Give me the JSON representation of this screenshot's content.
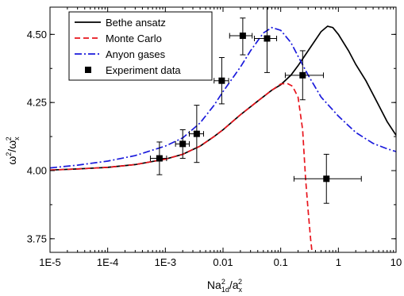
{
  "chart_data": {
    "type": "line",
    "title": "",
    "xscale": "log",
    "xlim": [
      1e-05,
      10
    ],
    "ylim": [
      3.7,
      4.6
    ],
    "grid": false,
    "legend_position": "top-left",
    "xlabel": {
      "base": "Na",
      "sup1": "2",
      "sub1": "1d",
      "mid": "/a",
      "sub2": "x",
      "sup2": "2"
    },
    "ylabel": {
      "base": "ω",
      "sup1": "2",
      "mid": "/ω",
      "sub2": "x",
      "sup2": "2"
    },
    "x_ticks": [
      {
        "value": 1e-05,
        "label": "1E-5"
      },
      {
        "value": 0.0001,
        "label": "1E-4"
      },
      {
        "value": 0.001,
        "label": "1E-3"
      },
      {
        "value": 0.01,
        "label": "0.01"
      },
      {
        "value": 0.1,
        "label": "0.1"
      },
      {
        "value": 1,
        "label": "1"
      },
      {
        "value": 10,
        "label": "10"
      }
    ],
    "y_ticks": [
      {
        "value": 3.75,
        "label": "3.75"
      },
      {
        "value": 4.0,
        "label": "4.00"
      },
      {
        "value": 4.25,
        "label": "4.25"
      },
      {
        "value": 4.5,
        "label": "4.50"
      }
    ],
    "series": [
      {
        "name": "Bethe ansatz",
        "style": "solid",
        "color": "#000000",
        "x": [
          1e-05,
          3e-05,
          0.0001,
          0.0003,
          0.001,
          0.002,
          0.004,
          0.007,
          0.01,
          0.02,
          0.04,
          0.07,
          0.1,
          0.15,
          0.2,
          0.3,
          0.5,
          0.65,
          0.8,
          1.0,
          1.5,
          2,
          3,
          5,
          7,
          10
        ],
        "y": [
          4.002,
          4.006,
          4.012,
          4.022,
          4.042,
          4.06,
          4.09,
          4.125,
          4.15,
          4.205,
          4.255,
          4.295,
          4.315,
          4.35,
          4.385,
          4.44,
          4.51,
          4.53,
          4.525,
          4.5,
          4.44,
          4.39,
          4.33,
          4.24,
          4.18,
          4.13
        ]
      },
      {
        "name": "Monte Carlo",
        "style": "dashed",
        "color": "#e8141c",
        "x": [
          1e-05,
          3e-05,
          0.0001,
          0.0003,
          0.001,
          0.002,
          0.004,
          0.007,
          0.01,
          0.02,
          0.04,
          0.07,
          0.1,
          0.13,
          0.16,
          0.2,
          0.24,
          0.27,
          0.3,
          0.33,
          0.35
        ],
        "y": [
          4.002,
          4.006,
          4.012,
          4.022,
          4.042,
          4.06,
          4.09,
          4.125,
          4.15,
          4.205,
          4.255,
          4.295,
          4.318,
          4.32,
          4.31,
          4.27,
          4.15,
          3.97,
          3.85,
          3.75,
          3.7
        ]
      },
      {
        "name": "Anyon gases",
        "style": "dashdot",
        "color": "#1a1adc",
        "x": [
          1e-05,
          3e-05,
          0.0001,
          0.0003,
          0.001,
          0.002,
          0.004,
          0.007,
          0.01,
          0.02,
          0.03,
          0.05,
          0.07,
          0.1,
          0.15,
          0.2,
          0.3,
          0.5,
          1,
          2,
          4,
          7,
          10
        ],
        "y": [
          4.01,
          4.02,
          4.035,
          4.055,
          4.09,
          4.12,
          4.175,
          4.24,
          4.29,
          4.38,
          4.44,
          4.505,
          4.525,
          4.515,
          4.47,
          4.42,
          4.35,
          4.27,
          4.2,
          4.14,
          4.1,
          4.08,
          4.07
        ]
      }
    ],
    "points": {
      "name": "Experiment data",
      "marker": "square",
      "color": "#000000",
      "data": [
        {
          "x": 0.00079,
          "y": 4.045,
          "xerr": [
            0.00055,
            0.00105
          ],
          "yerr": [
            3.985,
            4.105
          ]
        },
        {
          "x": 0.002,
          "y": 4.098,
          "xerr": [
            0.0015,
            0.0026
          ],
          "yerr": [
            4.045,
            4.15
          ]
        },
        {
          "x": 0.0035,
          "y": 4.135,
          "xerr": [
            0.0026,
            0.0046
          ],
          "yerr": [
            4.03,
            4.24
          ]
        },
        {
          "x": 0.0095,
          "y": 4.33,
          "xerr": [
            0.007,
            0.0125
          ],
          "yerr": [
            4.245,
            4.415
          ]
        },
        {
          "x": 0.022,
          "y": 4.495,
          "xerr": [
            0.013,
            0.032
          ],
          "yerr": [
            4.425,
            4.56
          ]
        },
        {
          "x": 0.058,
          "y": 4.485,
          "xerr": [
            0.035,
            0.085
          ],
          "yerr": [
            4.36,
            4.61
          ]
        },
        {
          "x": 0.24,
          "y": 4.35,
          "xerr": [
            0.12,
            0.55
          ],
          "yerr": [
            4.26,
            4.44
          ]
        },
        {
          "x": 0.62,
          "y": 3.97,
          "xerr": [
            0.17,
            2.5
          ],
          "yerr": [
            3.88,
            4.06
          ]
        }
      ]
    },
    "legend": [
      {
        "label": "Bethe ansatz"
      },
      {
        "label": "Monte Carlo"
      },
      {
        "label": "Anyon gases"
      },
      {
        "label": "Experiment data"
      }
    ]
  }
}
